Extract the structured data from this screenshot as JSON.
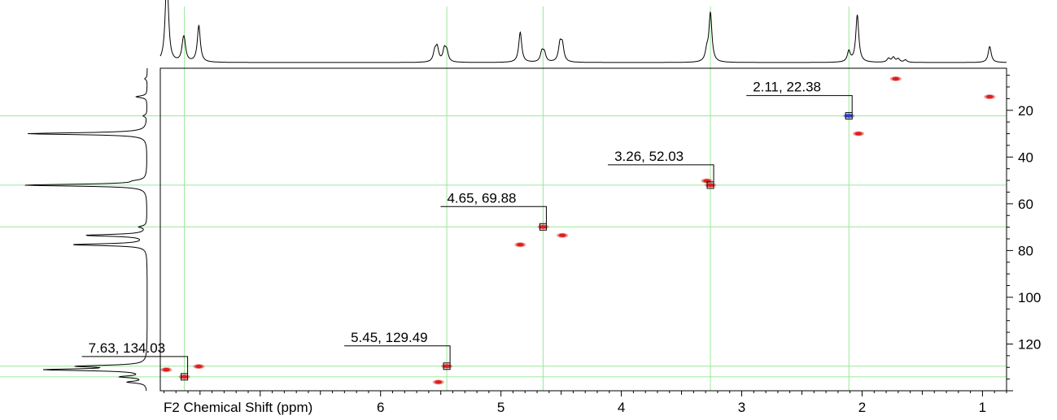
{
  "chart_data": {
    "type": "heatmap",
    "subtype": "2D NMR HSQC contour plot with 1D projections",
    "xlabel": "F2 Chemical Shift (ppm)",
    "ylabel": "",
    "x_axis": {
      "reversed": true,
      "lim": [
        7.83,
        0.8
      ],
      "ticks": [
        "6",
        "5",
        "4",
        "3",
        "2",
        "1"
      ]
    },
    "y_axis": {
      "reversed": true,
      "lim": [
        2,
        140
      ],
      "position": "right",
      "ticks": [
        "20",
        "40",
        "60",
        "80",
        "100",
        "120"
      ]
    },
    "grid": "crosshair lines (green) through labeled peaks",
    "colors": {
      "positive": "#dd1f1f",
      "negative": "#2b3fcc",
      "crosshair": "#9be79b",
      "frame": "#000000"
    },
    "cross_peaks": [
      {
        "x": 7.78,
        "y": 131.0,
        "sign": "positive"
      },
      {
        "x": 7.63,
        "y": 134.03,
        "sign": "positive"
      },
      {
        "x": 7.51,
        "y": 129.6,
        "sign": "positive"
      },
      {
        "x": 5.45,
        "y": 129.49,
        "sign": "positive"
      },
      {
        "x": 5.52,
        "y": 136.3,
        "sign": "positive"
      },
      {
        "x": 4.84,
        "y": 77.5,
        "sign": "positive"
      },
      {
        "x": 4.65,
        "y": 69.88,
        "sign": "positive"
      },
      {
        "x": 4.49,
        "y": 73.5,
        "sign": "positive"
      },
      {
        "x": 3.29,
        "y": 50.2,
        "sign": "positive"
      },
      {
        "x": 3.26,
        "y": 52.03,
        "sign": "positive"
      },
      {
        "x": 2.11,
        "y": 22.38,
        "sign": "negative"
      },
      {
        "x": 2.03,
        "y": 30.0,
        "sign": "positive"
      },
      {
        "x": 1.72,
        "y": 6.5,
        "sign": "positive"
      },
      {
        "x": 0.94,
        "y": 14.2,
        "sign": "positive"
      }
    ],
    "annotations": [
      {
        "text": "7.63, 134.03",
        "x": 7.63,
        "y": 134.03
      },
      {
        "text": "5.45, 129.49",
        "x": 5.45,
        "y": 129.49
      },
      {
        "text": "4.65, 69.88",
        "x": 4.65,
        "y": 69.88
      },
      {
        "text": "3.26, 52.03",
        "x": 3.26,
        "y": 52.03
      },
      {
        "text": "2.11, 22.38",
        "x": 2.11,
        "y": 22.38
      }
    ],
    "projection_f2": [
      {
        "x": 7.78,
        "h": 0.98
      },
      {
        "x": 7.77,
        "h": 0.85
      },
      {
        "x": 7.64,
        "h": 0.28
      },
      {
        "x": 7.63,
        "h": 0.3
      },
      {
        "x": 7.51,
        "h": 0.75
      },
      {
        "x": 5.55,
        "h": 0.2
      },
      {
        "x": 5.53,
        "h": 0.28
      },
      {
        "x": 5.47,
        "h": 0.25
      },
      {
        "x": 5.45,
        "h": 0.2
      },
      {
        "x": 4.84,
        "h": 0.62
      },
      {
        "x": 4.66,
        "h": 0.2
      },
      {
        "x": 4.64,
        "h": 0.18
      },
      {
        "x": 4.51,
        "h": 0.35
      },
      {
        "x": 4.49,
        "h": 0.33
      },
      {
        "x": 3.29,
        "h": 0.2
      },
      {
        "x": 3.26,
        "h": 1.0
      },
      {
        "x": 2.11,
        "h": 0.22
      },
      {
        "x": 2.04,
        "h": 0.97
      },
      {
        "x": 1.78,
        "h": 0.08
      },
      {
        "x": 1.74,
        "h": 0.1
      },
      {
        "x": 1.7,
        "h": 0.07
      },
      {
        "x": 1.64,
        "h": 0.05
      },
      {
        "x": 0.94,
        "h": 0.33
      }
    ],
    "projection_f1": [
      {
        "y": 6.5,
        "h": 0.02
      },
      {
        "y": 14.2,
        "h": 0.09
      },
      {
        "y": 22.38,
        "h": 0.03
      },
      {
        "y": 30.0,
        "h": 0.98
      },
      {
        "y": 50.2,
        "h": 0.06
      },
      {
        "y": 52.03,
        "h": 1.0
      },
      {
        "y": 69.88,
        "h": 0.06
      },
      {
        "y": 73.5,
        "h": 0.5
      },
      {
        "y": 77.5,
        "h": 0.61
      },
      {
        "y": 129.5,
        "h": 0.52
      },
      {
        "y": 131.0,
        "h": 0.8
      },
      {
        "y": 134.03,
        "h": 0.2
      },
      {
        "y": 136.3,
        "h": 0.15
      }
    ]
  }
}
